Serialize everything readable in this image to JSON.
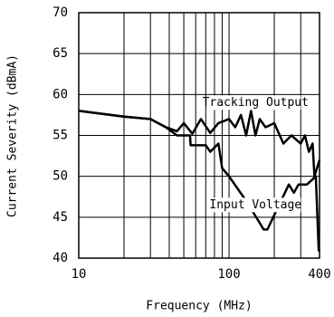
{
  "chart_data": {
    "type": "line",
    "x_label": "Frequency (MHz)",
    "y_label": "Current Severity (dBmA)",
    "xlog": true,
    "xlim": [
      10,
      400
    ],
    "ylim": [
      40,
      70
    ],
    "xticks": [
      10,
      100,
      400
    ],
    "xminor": [
      20,
      30,
      40,
      50,
      60,
      70,
      80,
      90,
      200,
      300
    ],
    "yticks": [
      40,
      45,
      50,
      55,
      60,
      65,
      70
    ],
    "grid": true,
    "series": [
      {
        "name": "Tracking Output",
        "color": "#000000",
        "x": [
          10,
          20,
          30,
          38,
          45,
          50,
          57,
          65,
          75,
          85,
          100,
          110,
          120,
          130,
          140,
          150,
          160,
          175,
          200,
          230,
          260,
          300,
          320,
          340,
          360,
          370,
          400
        ],
        "values": [
          58,
          57.3,
          57,
          56,
          55.5,
          56.5,
          55.2,
          57,
          55.3,
          56.5,
          57,
          56,
          57.5,
          55,
          58,
          55,
          57,
          56,
          56.5,
          54,
          55,
          54,
          55,
          53,
          54,
          50,
          52
        ]
      },
      {
        "name": "Input Voltage",
        "color": "#000000",
        "x": [
          10,
          20,
          30,
          38,
          45,
          55,
          55.5,
          70,
          75,
          85,
          90,
          100,
          130,
          170,
          180,
          250,
          270,
          290,
          330,
          378,
          395,
          400
        ],
        "values": [
          58,
          57.3,
          57,
          56,
          55,
          55,
          53.8,
          53.8,
          53,
          54,
          51,
          50,
          47,
          43.5,
          43.5,
          49,
          48,
          49,
          49,
          50,
          41,
          40.8
        ]
      }
    ],
    "annotations": [
      {
        "text": "Tracking Output",
        "x": 150,
        "y": 59
      },
      {
        "text": "Input Voltage",
        "x": 150,
        "y": 46.5
      }
    ]
  }
}
